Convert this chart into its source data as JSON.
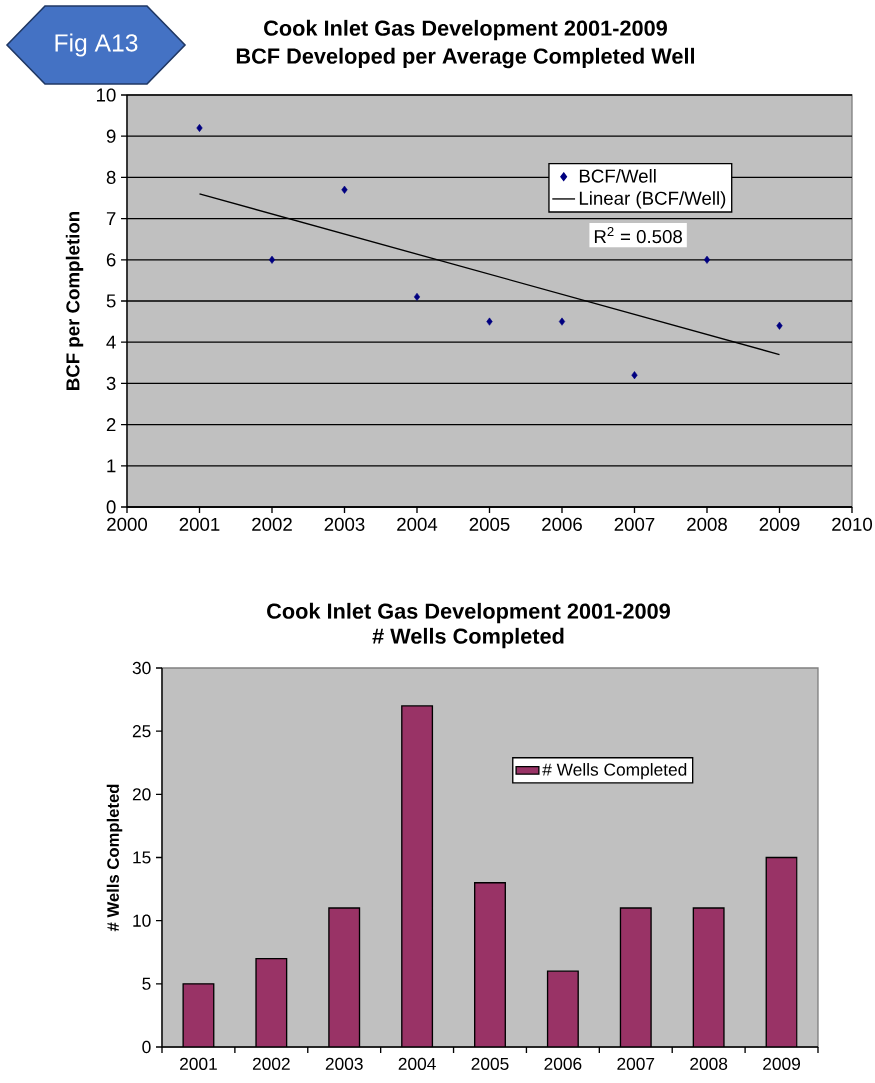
{
  "chart_data": [
    {
      "type": "scatter",
      "title": "Cook Inlet Gas Development 2001-2009",
      "subtitle": "BCF Developed per Average Completed Well",
      "ylabel": "BCF per Completion",
      "x": [
        2001,
        2002,
        2003,
        2004,
        2005,
        2006,
        2007,
        2008,
        2009
      ],
      "series": [
        {
          "name": "BCF/Well",
          "color": "#000080",
          "values": [
            9.2,
            6.0,
            7.7,
            5.1,
            4.5,
            4.5,
            3.2,
            6.0,
            4.4
          ]
        },
        {
          "name": "Linear (BCF/Well)",
          "type": "line",
          "color": "#000000",
          "marker": "none",
          "x": [
            2001,
            2009
          ],
          "values": [
            7.6,
            3.7
          ]
        }
      ],
      "xlim": [
        2000,
        2010
      ],
      "xticks": [
        2000,
        2001,
        2002,
        2003,
        2004,
        2005,
        2006,
        2007,
        2008,
        2009,
        2010
      ],
      "ylim": [
        0,
        10
      ],
      "yticks": [
        0,
        1,
        2,
        3,
        4,
        5,
        6,
        7,
        8,
        9,
        10
      ],
      "grid": "y",
      "legend": "top right",
      "marker": "diamond",
      "annotations": [
        "Fig A13",
        "R$^{2}$ = 0.508"
      ]
    },
    {
      "type": "bar",
      "title": "Cook Inlet Gas Development 2001-2009",
      "subtitle": "# Wells Completed",
      "ylabel": "# Wells Completed",
      "categories": [
        "2001",
        "2002",
        "2003",
        "2004",
        "2005",
        "2006",
        "2007",
        "2008",
        "2009"
      ],
      "series": [
        {
          "name": "# Wells Completed",
          "color": "#993366",
          "values": [
            5,
            7,
            11,
            27,
            13,
            6,
            11,
            11,
            15
          ]
        }
      ],
      "ylim": [
        0,
        30
      ],
      "yticks": [
        0,
        5,
        10,
        15,
        20,
        25,
        30
      ],
      "legend": "top right"
    }
  ]
}
